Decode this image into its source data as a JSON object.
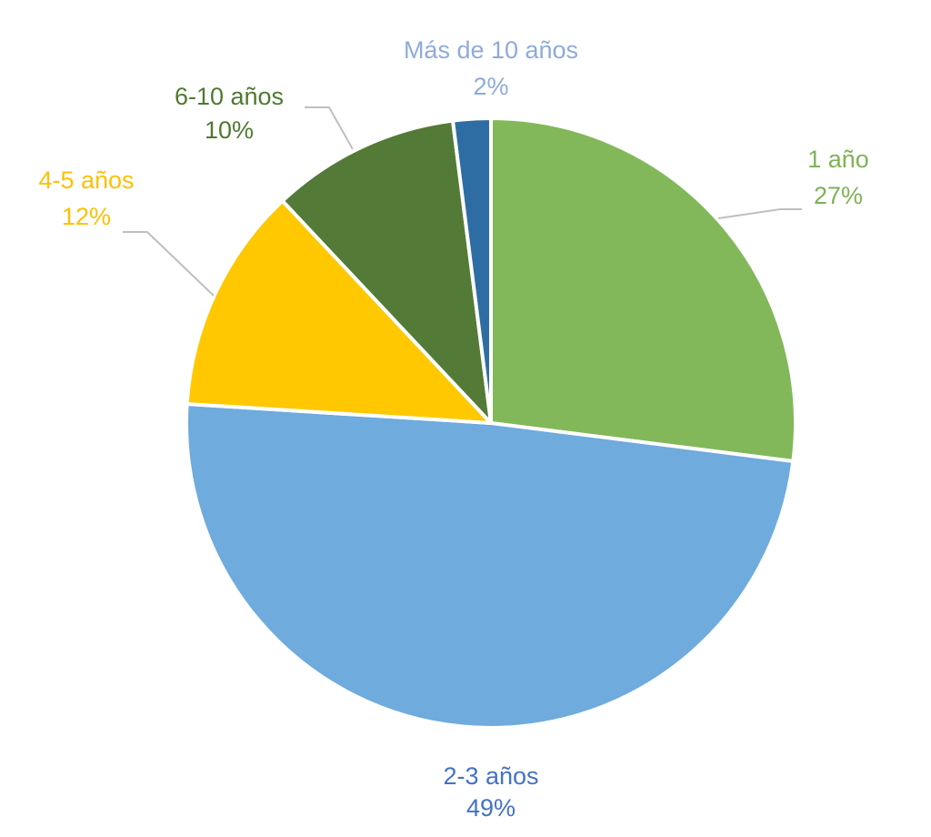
{
  "chart_data": {
    "type": "pie",
    "categories": [
      "1 año",
      "2-3 años",
      "4-5 años",
      "6-10 años",
      "Más de 10 años"
    ],
    "values": [
      27,
      49,
      12,
      10,
      2
    ],
    "value_labels": [
      "27%",
      "49%",
      "12%",
      "10%",
      "2%"
    ],
    "colors": [
      "#82b85a",
      "#6fabdc",
      "#ffc800",
      "#537a37",
      "#2e6da4"
    ],
    "label_colors": [
      "#7fb356",
      "#4472c4",
      "#ffc000",
      "#4e7a2f",
      "#8faadc"
    ]
  }
}
